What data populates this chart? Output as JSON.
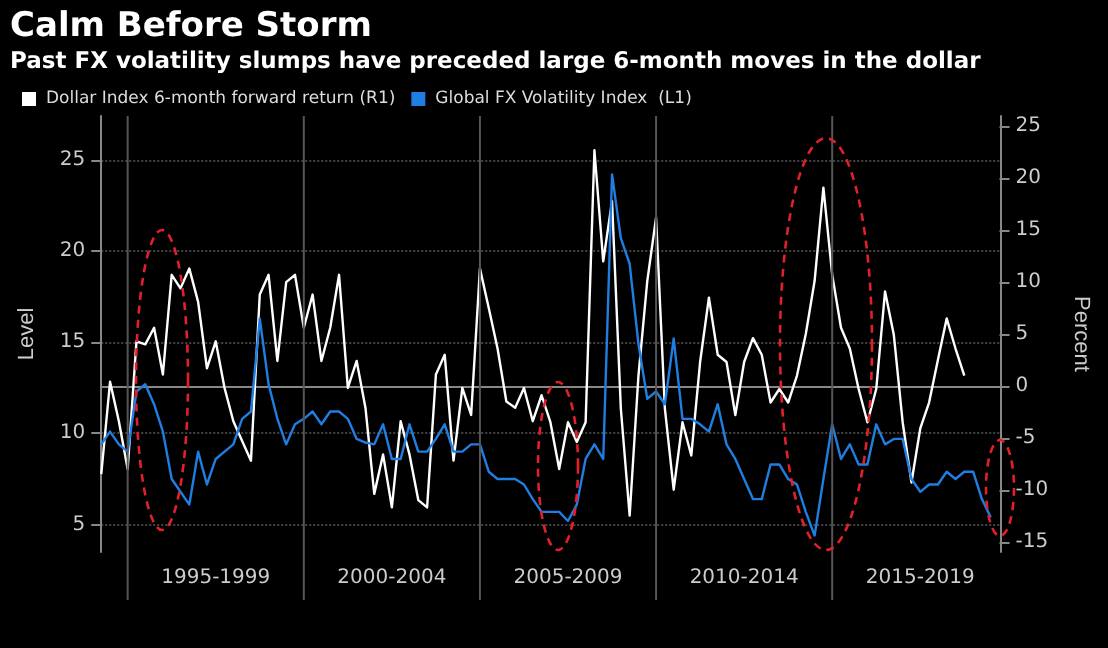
{
  "chart_data": {
    "type": "line",
    "title": "Calm Before Storm",
    "subtitle": "Past FX volatility slumps have preceded large 6-month moves in the dollar",
    "ylabel": "Level",
    "y2label": "Percent",
    "categories": [
      null,
      null,
      null,
      null,
      null,
      null,
      null,
      null,
      null,
      null,
      null,
      null,
      null,
      "1995-1999",
      null,
      null,
      null,
      null,
      null,
      null,
      null,
      null,
      null,
      null,
      null,
      null,
      null,
      null,
      null,
      null,
      null,
      null,
      null,
      "2000-2004",
      null,
      null,
      null,
      null,
      null,
      null,
      null,
      null,
      null,
      null,
      null,
      null,
      null,
      null,
      null,
      null,
      null,
      null,
      null,
      "2005-2009",
      null,
      null,
      null,
      null,
      null,
      null,
      null,
      null,
      null,
      null,
      null,
      null,
      null,
      null,
      null,
      null,
      null,
      null,
      null,
      "2010-2014",
      null,
      null,
      null,
      null,
      null,
      null,
      null,
      null,
      null,
      null,
      null,
      null,
      null,
      null,
      null,
      null,
      null,
      null,
      null,
      "2015-2019",
      null,
      null,
      null,
      null,
      null,
      null,
      null,
      null,
      null
    ],
    "ylim": [
      3.5,
      27.4
    ],
    "yticks": [
      5,
      10,
      15,
      20,
      25
    ],
    "y2lim": [
      -16,
      26
    ],
    "y2ticks": [
      -15,
      -10,
      -5,
      0,
      5,
      10,
      15,
      20,
      25
    ],
    "grid": true,
    "legend": "top left",
    "marker": "none",
    "line_style": "solid",
    "series": [
      {
        "name": "Dollar Index 6-month forward return (R1)",
        "color": "#ffffff",
        "axis": "y2",
        "values": [
          -8.5,
          0.4,
          -3.4,
          -8,
          4.3,
          4,
          5.6,
          1.1,
          10.7,
          9.4,
          11.3,
          8.1,
          1.7,
          4.3,
          -0.2,
          -3.4,
          -5.3,
          -7.2,
          8.8,
          10.7,
          2.4,
          10,
          10.7,
          5.6,
          8.8,
          2.4,
          5.6,
          10.7,
          -0.2,
          2.4,
          -2.1,
          -10.4,
          -6.6,
          -11.7,
          -3.4,
          -6.6,
          -11,
          -11.7,
          1.1,
          3,
          -7.2,
          -0.2,
          -2.8,
          11.3,
          7.5,
          3.6,
          -1.5,
          -2.1,
          -0.2,
          -3.4,
          -0.9,
          -3.5,
          -8,
          -3.5,
          -5.4,
          -3.5,
          22.7,
          12,
          17.8,
          -2.2,
          -12.5,
          1,
          10.1,
          16.2,
          -2.2,
          -10,
          -3.5,
          -6.7,
          2.3,
          8.5,
          3,
          2.3,
          -2.8,
          2.3,
          4.6,
          3,
          -1.6,
          -0.3,
          -1.6,
          1,
          5,
          10.1,
          19.1,
          10.7,
          5.6,
          3.6,
          -0.3,
          -3.5,
          -0.3,
          9.1,
          4.9,
          -3.5,
          -9.3,
          -4.1,
          -1.6,
          2.5,
          6.5,
          3.6,
          1,
          null,
          null,
          null,
          null
        ]
      },
      {
        "name": "Global FX Volatility Index  (L1)",
        "color": "#1f7ee0",
        "values": [
          9.4,
          10.1,
          9.4,
          9,
          12.3,
          12.7,
          11.6,
          10.1,
          7.5,
          6.8,
          6.1,
          9,
          7.2,
          8.6,
          9,
          9.4,
          10.8,
          11.2,
          16.3,
          12.7,
          10.8,
          9.4,
          10.5,
          10.8,
          11.2,
          10.5,
          11.2,
          11.2,
          10.8,
          9.7,
          9.5,
          9.4,
          10.5,
          8.6,
          8.6,
          10.5,
          9,
          9,
          9.7,
          10.5,
          9,
          9,
          9.4,
          9.4,
          7.9,
          7.5,
          7.5,
          7.5,
          7.2,
          6.4,
          5.7,
          5.7,
          5.7,
          5.2,
          6.1,
          8.6,
          9.4,
          8.6,
          24.2,
          20.7,
          19.3,
          14.9,
          11.9,
          12.3,
          11.6,
          15.2,
          10.8,
          10.8,
          10.5,
          10.1,
          11.6,
          9.4,
          8.6,
          7.5,
          6.4,
          6.4,
          8.3,
          8.3,
          7.5,
          7.2,
          5.7,
          4.4,
          7.5,
          10.5,
          8.6,
          9.4,
          8.3,
          8.3,
          10.5,
          9.4,
          9.7,
          9.7,
          7.5,
          6.8,
          7.2,
          7.2,
          7.9,
          7.5,
          7.9,
          7.9,
          6.4,
          5.4,
          null
        ]
      }
    ]
  }
}
